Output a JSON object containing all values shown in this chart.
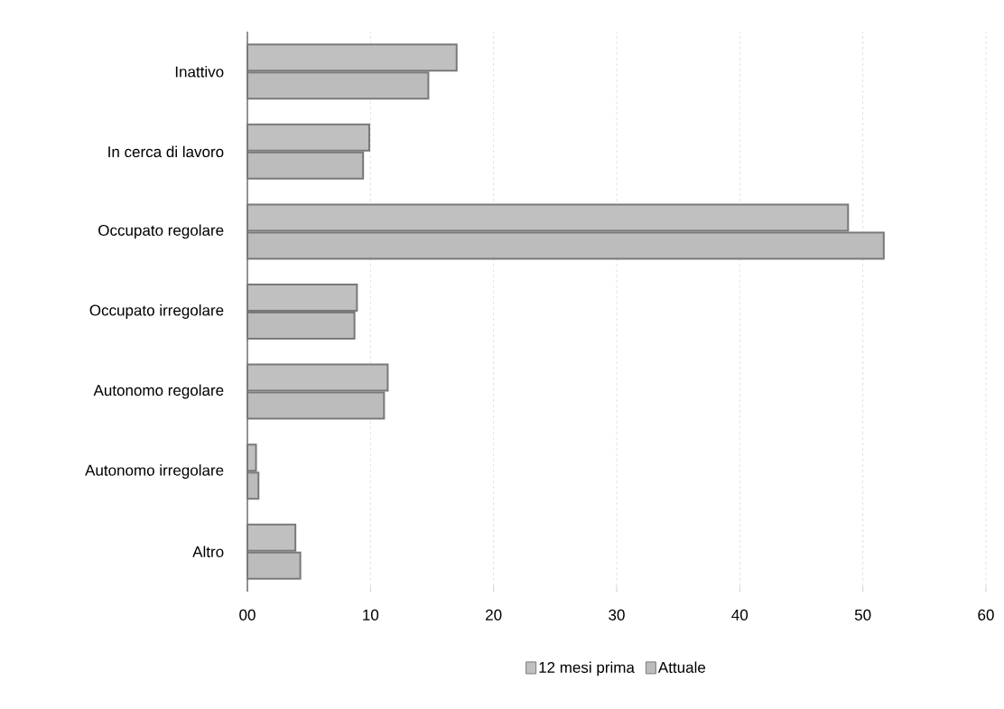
{
  "chart_data": {
    "type": "bar",
    "orientation": "horizontal",
    "categories": [
      "Inattivo",
      "In cerca di lavoro",
      "Occupato regolare",
      "Occupato irregolare",
      "Autonomo regolare",
      "Autonomo irregolare",
      "Altro"
    ],
    "series": [
      {
        "name": "12 mesi prima",
        "color": "#c0c0c0",
        "values": [
          17.0,
          9.9,
          48.8,
          8.9,
          11.4,
          0.7,
          3.9
        ]
      },
      {
        "name": "Attuale",
        "color": "#bcbcbc",
        "values": [
          14.7,
          9.4,
          51.7,
          8.7,
          11.1,
          0.9,
          4.3
        ]
      }
    ],
    "xlim": [
      0,
      60
    ],
    "xticks": [
      {
        "value": 0,
        "label": "00"
      },
      10,
      20,
      30,
      40,
      50,
      60
    ],
    "grid": "x",
    "legend": "bottom"
  }
}
